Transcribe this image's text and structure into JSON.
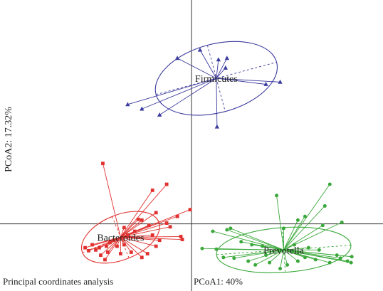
{
  "chart_data": {
    "type": "scatter",
    "title": "Principal coordinates analysis",
    "xlabel": "PCoA1: 40%",
    "ylabel": "PCoA2: 17.32%",
    "xlim": [
      -2.7,
      2.7
    ],
    "ylim": [
      -0.9,
      3.0
    ],
    "grid": false,
    "legend": "none",
    "series": [
      {
        "name": "Firmicutes",
        "color": "#3b3b9e",
        "marker": "triangle",
        "centroid": [
          0.35,
          1.95
        ],
        "ellipse": {
          "rx": 0.88,
          "ry": 0.46,
          "angle_deg": -15
        },
        "points": [
          [
            -0.2,
            2.22
          ],
          [
            0.48,
            2.09
          ],
          [
            0.38,
            2.2
          ],
          [
            0.5,
            2.22
          ],
          [
            1.05,
            1.87
          ],
          [
            1.25,
            1.9
          ],
          [
            -0.9,
            1.6
          ],
          [
            -0.45,
            1.46
          ],
          [
            -0.7,
            1.54
          ],
          [
            0.36,
            1.3
          ],
          [
            0.12,
            2.33
          ]
        ]
      },
      {
        "name": "Bacteroides",
        "color": "#e0312f",
        "marker": "square",
        "centroid": [
          -1.0,
          -0.18
        ],
        "ellipse": {
          "rx": 0.58,
          "ry": 0.3,
          "angle_deg": -22
        },
        "points": [
          [
            -1.25,
            0.81
          ],
          [
            -0.35,
            0.53
          ],
          [
            -0.55,
            0.45
          ],
          [
            -0.02,
            0.19
          ],
          [
            -0.2,
            0.1
          ],
          [
            -0.5,
            0.15
          ],
          [
            -0.7,
            0.05
          ],
          [
            -0.35,
            0.01
          ],
          [
            -0.3,
            -0.04
          ],
          [
            -0.6,
            -0.02
          ],
          [
            -0.75,
            0.06
          ],
          [
            -0.55,
            -0.15
          ],
          [
            -0.15,
            -0.17
          ],
          [
            -0.13,
            -0.21
          ],
          [
            -0.8,
            -0.1
          ],
          [
            -0.9,
            -0.15
          ],
          [
            -0.95,
            -0.28
          ],
          [
            -1.05,
            -0.3
          ],
          [
            -1.1,
            -0.22
          ],
          [
            -1.15,
            -0.25
          ],
          [
            -1.2,
            -0.3
          ],
          [
            -1.3,
            -0.32
          ],
          [
            -1.35,
            -0.35
          ],
          [
            -1.4,
            -0.28
          ],
          [
            -1.45,
            -0.36
          ],
          [
            -1.28,
            -0.42
          ],
          [
            -1.18,
            -0.38
          ],
          [
            -1.0,
            -0.4
          ],
          [
            -0.85,
            -0.38
          ],
          [
            -0.7,
            -0.45
          ],
          [
            -0.62,
            -0.4
          ],
          [
            -1.5,
            -0.32
          ],
          [
            -1.22,
            -0.48
          ],
          [
            -0.95,
            -0.05
          ],
          [
            -0.5,
            -0.3
          ],
          [
            -0.45,
            -0.22
          ]
        ]
      },
      {
        "name": "Prevotella",
        "color": "#3ba83b",
        "marker": "circle",
        "centroid": [
          1.3,
          -0.35
        ],
        "ellipse": {
          "rx": 0.95,
          "ry": 0.3,
          "angle_deg": -4
        },
        "points": [
          [
            1.95,
            0.53
          ],
          [
            1.88,
            0.24
          ],
          [
            1.2,
            0.38
          ],
          [
            1.6,
            0.1
          ],
          [
            1.5,
            0.05
          ],
          [
            2.12,
            0.02
          ],
          [
            1.85,
            -0.02
          ],
          [
            1.3,
            -0.06
          ],
          [
            0.5,
            -0.08
          ],
          [
            0.3,
            -0.1
          ],
          [
            0.55,
            -0.06
          ],
          [
            0.7,
            -0.24
          ],
          [
            0.85,
            -0.28
          ],
          [
            1.0,
            -0.3
          ],
          [
            0.15,
            -0.33
          ],
          [
            0.35,
            -0.34
          ],
          [
            0.45,
            -0.45
          ],
          [
            0.6,
            -0.46
          ],
          [
            0.8,
            -0.5
          ],
          [
            0.9,
            -0.55
          ],
          [
            1.1,
            -0.52
          ],
          [
            1.35,
            -0.55
          ],
          [
            1.5,
            -0.5
          ],
          [
            1.6,
            -0.45
          ],
          [
            1.75,
            -0.48
          ],
          [
            1.95,
            -0.52
          ],
          [
            2.1,
            -0.46
          ],
          [
            2.2,
            -0.5
          ],
          [
            2.26,
            -0.44
          ],
          [
            2.25,
            -0.52
          ],
          [
            2.05,
            -0.42
          ],
          [
            1.8,
            -0.35
          ],
          [
            1.65,
            -0.32
          ],
          [
            1.45,
            -0.28
          ],
          [
            1.25,
            -0.6
          ],
          [
            1.05,
            -0.42
          ]
        ]
      }
    ]
  }
}
